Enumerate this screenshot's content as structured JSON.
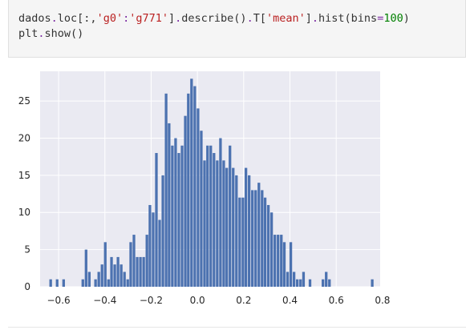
{
  "notebook": {
    "code_lines": [
      [
        {
          "t": "dados",
          "c": "plain"
        },
        {
          "t": ".",
          "c": "op"
        },
        {
          "t": "loc[:,",
          "c": "plain"
        },
        {
          "t": "'g0'",
          "c": "str"
        },
        {
          "t": ":",
          "c": "op"
        },
        {
          "t": "'g771'",
          "c": "str"
        },
        {
          "t": "]",
          "c": "plain"
        },
        {
          "t": ".",
          "c": "op"
        },
        {
          "t": "describe()",
          "c": "plain"
        },
        {
          "t": ".",
          "c": "op"
        },
        {
          "t": "T[",
          "c": "plain"
        },
        {
          "t": "'mean'",
          "c": "str"
        },
        {
          "t": "]",
          "c": "plain"
        },
        {
          "t": ".",
          "c": "op"
        },
        {
          "t": "hist(bins",
          "c": "plain"
        },
        {
          "t": "=",
          "c": "op"
        },
        {
          "t": "100",
          "c": "num"
        },
        {
          "t": ")",
          "c": "plain"
        }
      ],
      [
        {
          "t": "plt",
          "c": "plain"
        },
        {
          "t": ".",
          "c": "op"
        },
        {
          "t": "show()",
          "c": "plain"
        }
      ]
    ]
  },
  "colors": {
    "bar": "#4c72b0",
    "plot_bg": "#eaeaf2",
    "grid": "#ffffff",
    "tick_text": "#262626"
  },
  "chart_data": {
    "type": "bar",
    "xlim": [
      -0.68,
      0.79
    ],
    "ylim": [
      0,
      29
    ],
    "xticks": [
      -0.6,
      -0.4,
      -0.2,
      0.0,
      0.2,
      0.4,
      0.6,
      0.8
    ],
    "xtick_labels": [
      "−0.6",
      "−0.4",
      "−0.2",
      "0.0",
      "0.2",
      "0.4",
      "0.6",
      "0.8"
    ],
    "yticks": [
      0,
      5,
      10,
      15,
      20,
      25
    ],
    "ytick_labels": [
      "0",
      "5",
      "10",
      "15",
      "20",
      "25"
    ],
    "grid": true,
    "bin_width": 0.0138,
    "bins": [
      [
        -0.64,
        1
      ],
      [
        -0.612,
        1
      ],
      [
        -0.584,
        1
      ],
      [
        -0.501,
        1
      ],
      [
        -0.487,
        5
      ],
      [
        -0.473,
        2
      ],
      [
        -0.446,
        1
      ],
      [
        -0.432,
        2
      ],
      [
        -0.418,
        3
      ],
      [
        -0.404,
        6
      ],
      [
        -0.39,
        1
      ],
      [
        -0.377,
        4
      ],
      [
        -0.363,
        3
      ],
      [
        -0.349,
        4
      ],
      [
        -0.335,
        3
      ],
      [
        -0.321,
        2
      ],
      [
        -0.307,
        1
      ],
      [
        -0.294,
        6
      ],
      [
        -0.28,
        7
      ],
      [
        -0.266,
        4
      ],
      [
        -0.252,
        4
      ],
      [
        -0.238,
        4
      ],
      [
        -0.224,
        7
      ],
      [
        -0.211,
        11
      ],
      [
        -0.197,
        10
      ],
      [
        -0.183,
        18
      ],
      [
        -0.169,
        9
      ],
      [
        -0.155,
        15
      ],
      [
        -0.141,
        26
      ],
      [
        -0.128,
        22
      ],
      [
        -0.114,
        19
      ],
      [
        -0.1,
        20
      ],
      [
        -0.086,
        18
      ],
      [
        -0.072,
        19
      ],
      [
        -0.058,
        23
      ],
      [
        -0.045,
        26
      ],
      [
        -0.031,
        28
      ],
      [
        -0.017,
        27
      ],
      [
        -0.003,
        24
      ],
      [
        0.011,
        21
      ],
      [
        0.025,
        17
      ],
      [
        0.038,
        19
      ],
      [
        0.052,
        19
      ],
      [
        0.066,
        18
      ],
      [
        0.08,
        17
      ],
      [
        0.094,
        20
      ],
      [
        0.108,
        17
      ],
      [
        0.121,
        16
      ],
      [
        0.135,
        19
      ],
      [
        0.149,
        16
      ],
      [
        0.163,
        15
      ],
      [
        0.177,
        12
      ],
      [
        0.191,
        12
      ],
      [
        0.204,
        16
      ],
      [
        0.218,
        15
      ],
      [
        0.232,
        13
      ],
      [
        0.246,
        13
      ],
      [
        0.26,
        14
      ],
      [
        0.274,
        13
      ],
      [
        0.287,
        12
      ],
      [
        0.301,
        11
      ],
      [
        0.315,
        10
      ],
      [
        0.329,
        7
      ],
      [
        0.343,
        7
      ],
      [
        0.357,
        7
      ],
      [
        0.37,
        6
      ],
      [
        0.384,
        2
      ],
      [
        0.398,
        6
      ],
      [
        0.412,
        2
      ],
      [
        0.426,
        1
      ],
      [
        0.44,
        1
      ],
      [
        0.453,
        2
      ],
      [
        0.481,
        1
      ],
      [
        0.537,
        1
      ],
      [
        0.551,
        2
      ],
      [
        0.565,
        1
      ],
      [
        0.75,
        1
      ]
    ]
  }
}
